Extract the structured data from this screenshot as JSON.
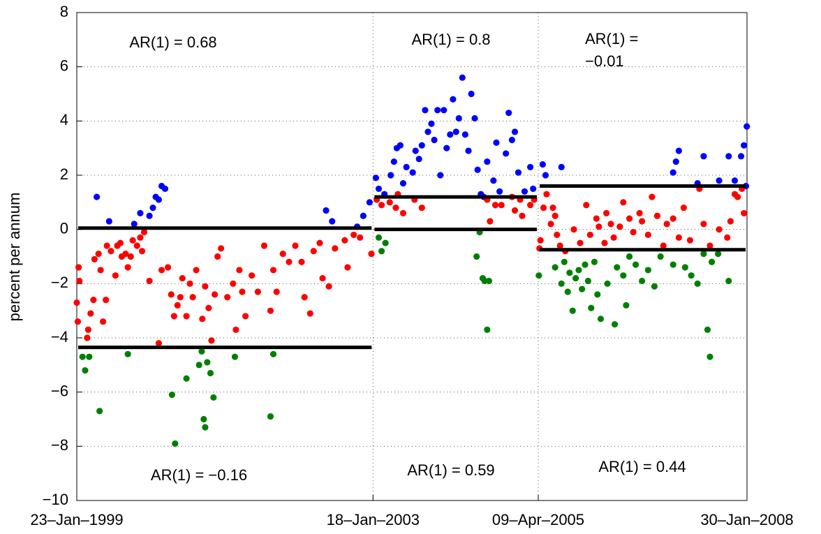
{
  "chart_data": {
    "type": "scatter",
    "ylabel": "percent per annum",
    "ylim": [
      -10,
      8
    ],
    "yticks": [
      {
        "value": -10,
        "label": "−10"
      },
      {
        "value": -8,
        "label": "−8"
      },
      {
        "value": -6,
        "label": "−6"
      },
      {
        "value": -4,
        "label": "−4"
      },
      {
        "value": -2,
        "label": "−2"
      },
      0,
      2,
      4,
      6,
      8
    ],
    "xlim": [
      "1999-01-23",
      "2008-01-30"
    ],
    "xticks": [
      {
        "value": "1999-01-23",
        "label": "23–Jan–1999"
      },
      {
        "value": "2003-01-18",
        "label": "18–Jan–2003"
      },
      {
        "value": "2005-04-09",
        "label": "09–Apr–2005"
      },
      {
        "value": "2008-01-30",
        "label": "30–Jan–2008"
      }
    ],
    "grid": true,
    "series": [
      {
        "color": "#0000ff",
        "x": [
          "1999-05-01",
          "1999-07-01",
          "1999-11-01",
          "1999-12-01",
          "2000-01-15",
          "2000-02-01",
          "2000-02-15",
          "2000-03-01",
          "2000-03-15",
          "2000-04-01",
          "2002-06-01",
          "2002-07-01",
          "2002-11-01",
          "2002-12-01",
          "2003-01-01",
          "2003-02-01",
          "2003-02-15",
          "2003-03-15",
          "2003-04-15",
          "2003-05-01",
          "2003-05-15",
          "2003-06-01",
          "2003-06-15",
          "2003-07-01",
          "2003-08-01",
          "2003-08-15",
          "2003-09-01",
          "2003-09-15",
          "2003-10-01",
          "2003-10-15",
          "2003-11-01",
          "2003-11-15",
          "2003-12-01",
          "2003-12-15",
          "2004-01-01",
          "2004-01-15",
          "2004-02-01",
          "2004-02-15",
          "2004-03-01",
          "2004-03-15",
          "2004-04-01",
          "2004-04-15",
          "2004-05-01",
          "2004-05-15",
          "2004-06-01",
          "2004-06-15",
          "2004-07-01",
          "2004-07-15",
          "2004-08-01",
          "2004-09-01",
          "2004-09-15",
          "2004-10-01",
          "2004-11-01",
          "2004-11-15",
          "2004-12-01",
          "2004-12-15",
          "2005-01-01",
          "2005-02-01",
          "2005-03-01",
          "2005-03-15",
          "2005-05-01",
          "2005-05-15",
          "2005-08-01",
          "2007-02-01",
          "2007-02-15",
          "2007-03-01",
          "2007-06-01",
          "2007-07-01",
          "2007-09-15",
          "2007-11-01",
          "2007-12-01",
          "2008-01-01",
          "2008-01-15",
          "2008-01-25",
          "2008-01-29"
        ],
        "values": [
          1.2,
          0.3,
          0.2,
          0.6,
          0.5,
          0.8,
          1.2,
          1.1,
          1.6,
          1.5,
          0.7,
          0.3,
          0.1,
          0.5,
          1.0,
          1.9,
          1.5,
          1.3,
          2.0,
          2.5,
          3.0,
          3.1,
          1.7,
          2.3,
          2.1,
          2.9,
          2.6,
          3.1,
          4.4,
          3.6,
          3.9,
          3.3,
          4.4,
          2.0,
          4.4,
          3.0,
          3.5,
          4.8,
          3.6,
          4.1,
          5.6,
          3.5,
          2.9,
          5.0,
          4.1,
          2.2,
          1.3,
          1.2,
          2.5,
          1.8,
          3.2,
          1.4,
          2.8,
          4.3,
          3.3,
          3.6,
          2.1,
          1.4,
          2.3,
          1.5,
          2.4,
          2.0,
          2.3,
          2.1,
          2.5,
          2.9,
          1.7,
          2.7,
          1.8,
          2.7,
          1.8,
          2.7,
          3.1,
          1.6,
          3.8
        ]
      },
      {
        "color": "#ff0000",
        "x": [
          "1999-01-23",
          "1999-01-28",
          "1999-02-01",
          "1999-02-05",
          "1999-03-15",
          "1999-03-20",
          "1999-04-01",
          "1999-04-15",
          "1999-04-20",
          "1999-05-10",
          "1999-05-20",
          "1999-06-01",
          "1999-06-15",
          "1999-06-20",
          "1999-07-10",
          "1999-08-01",
          "1999-08-10",
          "1999-08-25",
          "1999-09-01",
          "1999-09-20",
          "1999-10-01",
          "1999-10-15",
          "1999-10-25",
          "1999-11-15",
          "1999-12-01",
          "1999-12-10",
          "1999-12-20",
          "2000-01-15",
          "2000-03-01",
          "2000-03-15",
          "2000-04-15",
          "2000-05-01",
          "2000-05-15",
          "2000-06-01",
          "2000-06-15",
          "2000-06-25",
          "2000-07-15",
          "2000-08-01",
          "2000-08-15",
          "2000-09-01",
          "2000-10-01",
          "2000-10-15",
          "2000-11-01",
          "2000-11-15",
          "2000-12-01",
          "2000-12-15",
          "2001-01-01",
          "2001-02-01",
          "2001-03-01",
          "2001-03-15",
          "2001-04-01",
          "2001-04-15",
          "2001-05-01",
          "2001-06-01",
          "2001-07-01",
          "2001-08-01",
          "2001-09-01",
          "2001-09-15",
          "2001-10-01",
          "2001-11-01",
          "2001-12-01",
          "2002-01-01",
          "2002-02-01",
          "2002-02-15",
          "2002-03-15",
          "2002-04-01",
          "2002-05-01",
          "2002-05-15",
          "2002-06-15",
          "2002-07-15",
          "2002-09-01",
          "2002-09-15",
          "2002-10-15",
          "2002-11-15",
          "2003-01-10",
          "2003-02-05",
          "2003-03-01",
          "2003-04-10",
          "2003-05-10",
          "2003-05-20",
          "2003-06-15",
          "2003-08-10",
          "2003-09-15",
          "2004-08-01",
          "2004-08-15",
          "2004-09-10",
          "2004-10-10",
          "2004-12-01",
          "2004-12-15",
          "2005-01-10",
          "2005-01-20",
          "2005-03-01",
          "2005-03-20",
          "2005-04-15",
          "2005-04-20",
          "2005-05-05",
          "2005-05-20",
          "2005-06-10",
          "2005-06-20",
          "2005-07-01",
          "2005-07-10",
          "2005-07-25",
          "2005-08-20",
          "2005-10-01",
          "2005-11-01",
          "2005-12-01",
          "2005-12-20",
          "2006-01-20",
          "2006-02-01",
          "2006-03-01",
          "2006-03-10",
          "2006-04-01",
          "2006-04-15",
          "2006-05-15",
          "2006-06-01",
          "2006-07-01",
          "2006-07-20",
          "2006-08-20",
          "2006-09-01",
          "2006-10-01",
          "2006-10-20",
          "2006-11-15",
          "2006-12-15",
          "2007-01-01",
          "2007-02-01",
          "2007-03-01",
          "2007-03-25",
          "2007-04-25",
          "2007-06-10",
          "2007-07-01",
          "2007-08-01",
          "2007-09-15",
          "2007-10-25",
          "2007-11-10",
          "2007-12-01",
          "2007-12-15",
          "2008-01-05",
          "2008-01-15"
        ],
        "values": [
          -2.7,
          -3.4,
          -1.4,
          -1.9,
          -4.0,
          -3.7,
          -3.1,
          -2.6,
          -1.1,
          -0.9,
          -1.5,
          -3.4,
          -2.6,
          -0.6,
          -0.8,
          -1.7,
          -0.6,
          -0.5,
          -1.0,
          -0.9,
          -1.4,
          -1.0,
          -0.4,
          -0.6,
          -0.3,
          -0.8,
          -0.1,
          -1.9,
          -4.2,
          -1.5,
          -1.4,
          -2.4,
          -3.2,
          -2.8,
          -2.5,
          -1.8,
          -3.2,
          -2.0,
          -2.5,
          -1.5,
          -3.3,
          -2.1,
          -2.9,
          -4.1,
          -2.4,
          -1.0,
          -0.7,
          -2.5,
          -2.0,
          -3.7,
          -1.5,
          -2.3,
          -3.2,
          -1.7,
          -2.3,
          -0.6,
          -3.0,
          -1.5,
          -2.3,
          -0.9,
          -1.2,
          -0.6,
          -1.2,
          -2.5,
          -3.1,
          -0.8,
          -0.5,
          -1.8,
          -2.1,
          -0.7,
          -0.4,
          -1.4,
          -0.2,
          -0.3,
          -0.9,
          1.1,
          0.9,
          1.0,
          0.8,
          1.3,
          0.6,
          1.1,
          0.8,
          1.1,
          0.3,
          0.9,
          0.9,
          1.2,
          0.7,
          1.1,
          0.5,
          0.9,
          1.1,
          -0.7,
          -0.4,
          0.8,
          1.3,
          0.2,
          0.8,
          0.5,
          -0.2,
          -0.6,
          -0.8,
          0.0,
          -0.5,
          0.9,
          -0.2,
          0.4,
          0.1,
          -0.5,
          0.6,
          0.2,
          -0.3,
          0.1,
          1.0,
          0.4,
          -0.1,
          0.6,
          0.3,
          -0.2,
          1.2,
          0.5,
          -0.6,
          0.2,
          0.4,
          -0.3,
          0.8,
          -0.4,
          1.5,
          0.2,
          -0.6,
          0.0,
          -0.3,
          0.3,
          1.3,
          1.2,
          1.5,
          0.6
        ]
      },
      {
        "color": "#008000",
        "x": [
          "1999-02-20",
          "1999-03-05",
          "1999-03-25",
          "1999-05-15",
          "1999-10-01",
          "2000-05-05",
          "2000-05-20",
          "2000-07-15",
          "2000-09-15",
          "2000-09-28",
          "2000-10-08",
          "2000-10-15",
          "2000-10-25",
          "2000-11-10",
          "2000-11-25",
          "2001-03-10",
          "2001-09-01",
          "2001-09-15",
          "2003-02-15",
          "2003-03-01",
          "2003-03-20",
          "2004-06-10",
          "2004-06-25",
          "2004-07-10",
          "2004-07-20",
          "2004-08-01",
          "2004-08-10",
          "2005-04-12",
          "2005-07-01",
          "2005-08-01",
          "2005-08-15",
          "2005-09-01",
          "2005-09-10",
          "2005-09-25",
          "2005-10-10",
          "2005-10-25",
          "2005-11-10",
          "2005-11-25",
          "2005-12-10",
          "2005-12-25",
          "2006-01-10",
          "2006-01-25",
          "2006-02-10",
          "2006-03-15",
          "2006-04-20",
          "2006-05-01",
          "2006-06-01",
          "2006-06-15",
          "2006-07-01",
          "2006-08-01",
          "2006-09-01",
          "2006-10-01",
          "2006-11-01",
          "2006-12-01",
          "2007-02-01",
          "2007-04-01",
          "2007-05-01",
          "2007-06-01",
          "2007-07-01",
          "2007-07-20",
          "2007-08-01",
          "2007-08-10",
          "2007-09-10",
          "2007-11-01"
        ],
        "values": [
          -4.7,
          -5.2,
          -4.7,
          -6.7,
          -4.6,
          -6.1,
          -7.9,
          -5.5,
          -5.0,
          -4.5,
          -7.0,
          -7.3,
          -4.9,
          -5.3,
          -6.2,
          -4.7,
          -6.9,
          -4.6,
          -0.3,
          -0.8,
          -0.5,
          -1.0,
          -0.1,
          -1.8,
          -1.9,
          -3.7,
          -1.9,
          -1.7,
          -1.4,
          -2.0,
          -1.2,
          -2.3,
          -1.6,
          -3.0,
          -1.8,
          -1.5,
          -2.2,
          -1.3,
          -1.9,
          -2.9,
          -1.2,
          -2.4,
          -3.3,
          -2.0,
          -3.5,
          -1.4,
          -1.7,
          -2.8,
          -1.0,
          -1.3,
          -1.9,
          -1.5,
          -2.1,
          -1.0,
          -1.3,
          -1.4,
          -1.7,
          -2.0,
          -0.9,
          -3.7,
          -4.7,
          -1.2,
          -0.9,
          -1.9
        ]
      }
    ],
    "levels": [
      {
        "start": "1999-01-23",
        "end": "2003-01-18",
        "values": [
          0.05,
          -4.35
        ]
      },
      {
        "start": "2003-01-18",
        "end": "2005-04-09",
        "values": [
          1.2,
          0.0
        ]
      },
      {
        "start": "2005-04-09",
        "end": "2008-01-30",
        "values": [
          1.6,
          -0.75
        ]
      }
    ],
    "annotations": [
      [
        "AR(1) = 0.68"
      ],
      [
        "AR(1) = 0.8"
      ],
      [
        "AR(1) =",
        "−0.01"
      ],
      [
        "AR(1) = −0.16"
      ],
      [
        "AR(1) = 0.59"
      ],
      [
        "AR(1) = 0.44"
      ]
    ]
  }
}
